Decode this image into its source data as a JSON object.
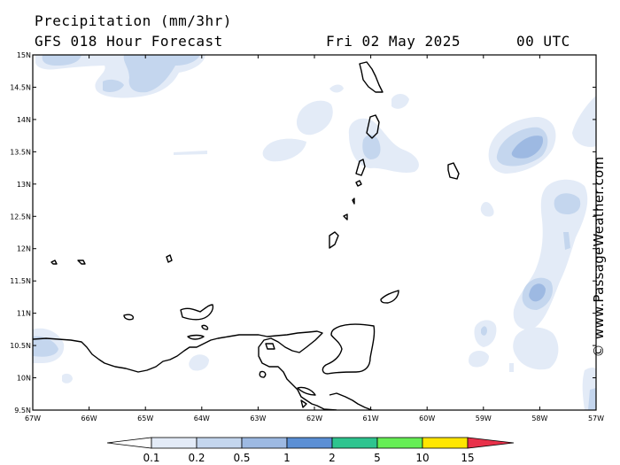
{
  "header": {
    "title": "Precipitation (mm/3hr)",
    "subtitle": "GFS 018 Hour Forecast",
    "date": "Fri 02 May 2025",
    "time": "00 UTC"
  },
  "watermark": "© www.PassageWeather.com",
  "axes": {
    "lat_labels": [
      "15N",
      "14.5N",
      "14N",
      "13.5N",
      "13N",
      "12.5N",
      "12N",
      "11.5N",
      "11N",
      "10.5N",
      "10N",
      "9.5N"
    ],
    "lon_labels": [
      "67W",
      "66W",
      "65W",
      "64W",
      "63W",
      "62W",
      "61W",
      "60W",
      "59W",
      "58W",
      "57W"
    ]
  },
  "legend": {
    "levels": [
      "0.1",
      "0.2",
      "0.5",
      "1",
      "2",
      "5",
      "10",
      "15"
    ],
    "colors": [
      "#ffffff",
      "#e3ebf7",
      "#c4d6ee",
      "#9db9e2",
      "#5b8fd4",
      "#2ec48f",
      "#66ee55",
      "#ffe600",
      "#ff8a00",
      "#e8314a"
    ]
  }
}
